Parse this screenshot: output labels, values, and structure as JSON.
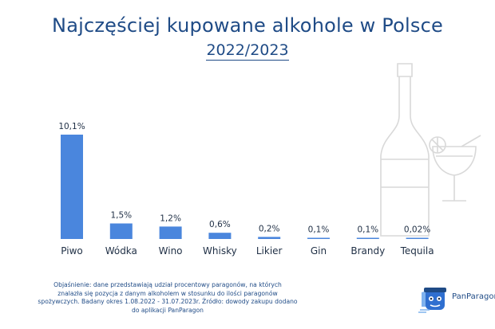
{
  "title": "Najczęściej kupowane alkohole w Polsce",
  "subtitle": "2022/2023",
  "footnote": {
    "lines": [
      "Objaśnienie: dane przedstawiają udział procentowy paragonów, na których",
      "znalazła się pozycja z danym alkoholem  w stosunku do ilości paragonów",
      "spożywczych. Badany okres 1.08.2022 - 31.07.2023r.  Źródło: dowody zakupu dodano",
      "do aplikacji PanParagon"
    ]
  },
  "brand": {
    "name": "PanParagon",
    "icon": "panparagon-logo-icon"
  },
  "decoration": {
    "bottle_icon": "wine-bottle-icon",
    "glass_icon": "cocktail-glass-icon"
  },
  "colors": {
    "bar": "#4a86dd",
    "title": "#1f4b86",
    "labels": "#1f2f45",
    "decoration": "#d9d9d9"
  },
  "chart_data": {
    "type": "bar",
    "title": "Najczęściej kupowane alkohole w Polsce",
    "subtitle": "2022/2023",
    "categories": [
      "Piwo",
      "Wódka",
      "Wino",
      "Whisky",
      "Likier",
      "Gin",
      "Brandy",
      "Tequila"
    ],
    "values": [
      10.1,
      1.5,
      1.2,
      0.6,
      0.2,
      0.1,
      0.1,
      0.02
    ],
    "value_labels": [
      "10,1%",
      "1,5%",
      "1,2%",
      "0,6%",
      "0,2%",
      "0,1%",
      "0,1%",
      "0,02%"
    ],
    "unit": "%",
    "xlabel": "",
    "ylabel": "",
    "ylim": [
      0,
      10.1
    ],
    "grid": false,
    "legend": "none"
  }
}
